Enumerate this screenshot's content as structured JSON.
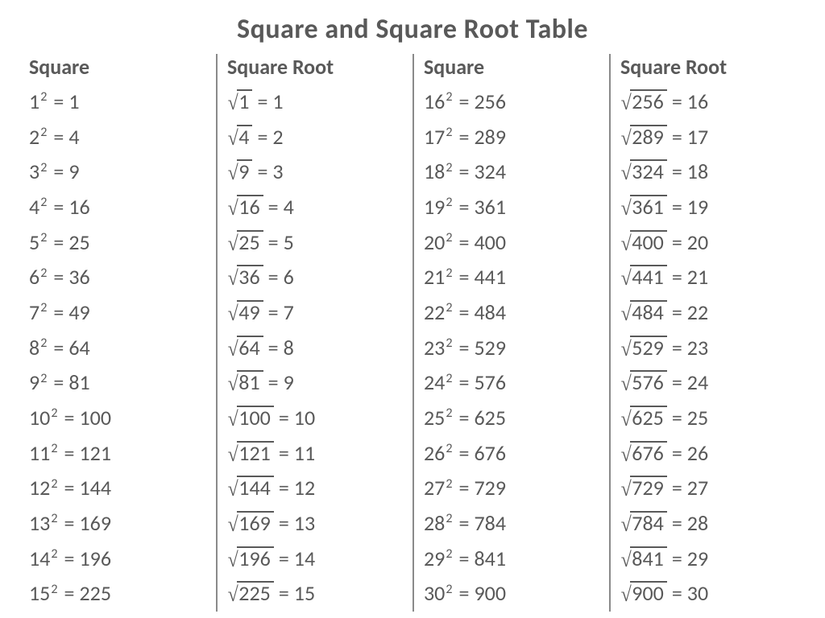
{
  "title": "Square and Square Root Table",
  "headers": {
    "square": "Square",
    "root": "Square Root"
  },
  "text_color": "#595959",
  "background_color": "#ffffff",
  "divider_color": "#8a8a8a",
  "title_fontsize": 34,
  "header_fontsize": 26,
  "cell_fontsize": 26,
  "exponent": "2",
  "equals": "=",
  "columns": [
    {
      "kind": "square",
      "rows": [
        {
          "base": "1",
          "result": "1"
        },
        {
          "base": "2",
          "result": "4"
        },
        {
          "base": "3",
          "result": "9"
        },
        {
          "base": "4",
          "result": "16"
        },
        {
          "base": "5",
          "result": "25"
        },
        {
          "base": "6",
          "result": "36"
        },
        {
          "base": "7",
          "result": "49"
        },
        {
          "base": "8",
          "result": "64"
        },
        {
          "base": "9",
          "result": "81"
        },
        {
          "base": "10",
          "result": "100"
        },
        {
          "base": "11",
          "result": "121"
        },
        {
          "base": "12",
          "result": "144"
        },
        {
          "base": "13",
          "result": "169"
        },
        {
          "base": "14",
          "result": "196"
        },
        {
          "base": "15",
          "result": "225"
        }
      ]
    },
    {
      "kind": "root",
      "rows": [
        {
          "radicand": "1",
          "result": "1"
        },
        {
          "radicand": "4",
          "result": "2"
        },
        {
          "radicand": "9",
          "result": "3"
        },
        {
          "radicand": "16",
          "result": "4"
        },
        {
          "radicand": "25",
          "result": "5"
        },
        {
          "radicand": "36",
          "result": "6"
        },
        {
          "radicand": "49",
          "result": "7"
        },
        {
          "radicand": "64",
          "result": "8"
        },
        {
          "radicand": "81",
          "result": "9"
        },
        {
          "radicand": "100",
          "result": "10"
        },
        {
          "radicand": "121",
          "result": "11"
        },
        {
          "radicand": "144",
          "result": "12"
        },
        {
          "radicand": "169",
          "result": "13"
        },
        {
          "radicand": "196",
          "result": "14"
        },
        {
          "radicand": "225",
          "result": "15"
        }
      ]
    },
    {
      "kind": "square",
      "rows": [
        {
          "base": "16",
          "result": "256"
        },
        {
          "base": "17",
          "result": "289"
        },
        {
          "base": "18",
          "result": "324"
        },
        {
          "base": "19",
          "result": "361"
        },
        {
          "base": "20",
          "result": "400"
        },
        {
          "base": "21",
          "result": "441"
        },
        {
          "base": "22",
          "result": "484"
        },
        {
          "base": "23",
          "result": "529"
        },
        {
          "base": "24",
          "result": "576"
        },
        {
          "base": "25",
          "result": "625"
        },
        {
          "base": "26",
          "result": "676"
        },
        {
          "base": "27",
          "result": "729"
        },
        {
          "base": "28",
          "result": "784"
        },
        {
          "base": "29",
          "result": "841"
        },
        {
          "base": "30",
          "result": "900"
        }
      ]
    },
    {
      "kind": "root",
      "rows": [
        {
          "radicand": "256",
          "result": "16"
        },
        {
          "radicand": "289",
          "result": "17"
        },
        {
          "radicand": "324",
          "result": "18"
        },
        {
          "radicand": "361",
          "result": "19"
        },
        {
          "radicand": "400",
          "result": "20"
        },
        {
          "radicand": "441",
          "result": "21"
        },
        {
          "radicand": "484",
          "result": "22"
        },
        {
          "radicand": "529",
          "result": "23"
        },
        {
          "radicand": "576",
          "result": "24"
        },
        {
          "radicand": "625",
          "result": "25"
        },
        {
          "radicand": "676",
          "result": "26"
        },
        {
          "radicand": "729",
          "result": "27"
        },
        {
          "radicand": "784",
          "result": "28"
        },
        {
          "radicand": "841",
          "result": "29"
        },
        {
          "radicand": "900",
          "result": "30"
        }
      ]
    }
  ]
}
